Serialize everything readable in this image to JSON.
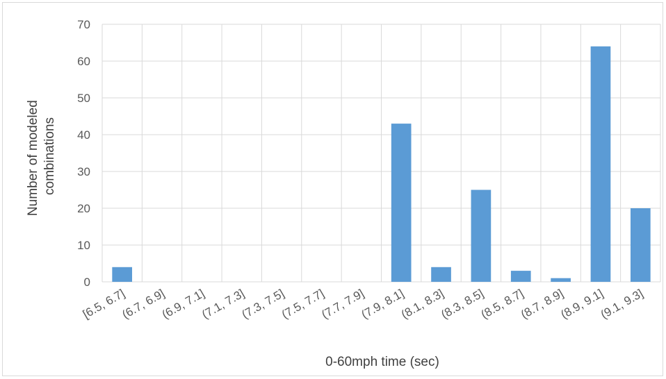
{
  "chart_data": {
    "type": "bar",
    "title": "",
    "xlabel": "0-60mph time (sec)",
    "ylabel_lines": [
      "Number of modeled",
      "combinations"
    ],
    "categories": [
      "[6.5, 6.7]",
      "(6.7, 6.9]",
      "(6.9, 7.1]",
      "(7.1, 7.3]",
      "(7.3, 7.5]",
      "(7.5, 7.7]",
      "(7.7, 7.9]",
      "(7.9, 8.1]",
      "(8.1, 8.3]",
      "(8.3, 8.5]",
      "(8.5, 8.7]",
      "(8.7, 8.9]",
      "(8.9, 9.1]",
      "(9.1, 9.3]"
    ],
    "values": [
      4,
      0,
      0,
      0,
      0,
      0,
      0,
      43,
      4,
      25,
      3,
      1,
      64,
      20
    ],
    "ylim": [
      0,
      70
    ],
    "yticks": [
      "0",
      "10",
      "20",
      "30",
      "40",
      "50",
      "60",
      "70"
    ],
    "grid": true,
    "bar_color": "#5b9bd5",
    "grid_color": "#d9d9d9"
  }
}
